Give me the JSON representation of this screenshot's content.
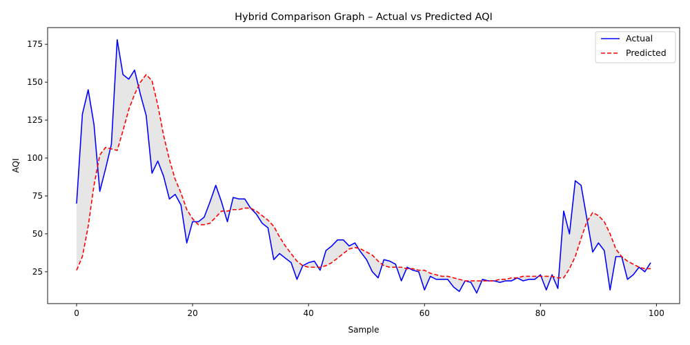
{
  "chart_data": {
    "type": "line",
    "title": "Hybrid Comparison Graph – Actual vs Predicted AQI",
    "xlabel": "Sample",
    "ylabel": "AQI",
    "xlim": [
      -5,
      104
    ],
    "ylim": [
      4,
      186
    ],
    "xticks": [
      0,
      20,
      40,
      60,
      80,
      100
    ],
    "yticks": [
      25,
      50,
      75,
      100,
      125,
      150,
      175
    ],
    "grid": false,
    "legend_position": "top-right",
    "fill_between": {
      "color": "#e6e6e6"
    },
    "series": [
      {
        "name": "Actual",
        "color": "#0000ff",
        "style": "solid",
        "values": [
          70,
          129,
          145,
          122,
          78,
          93,
          109,
          178,
          155,
          152,
          158,
          142,
          128,
          90,
          98,
          88,
          73,
          76,
          69,
          44,
          58,
          58,
          61,
          71,
          82,
          71,
          58,
          74,
          73,
          73,
          67,
          63,
          57,
          54,
          33,
          37,
          34,
          31,
          20,
          29,
          31,
          32,
          26,
          39,
          42,
          46,
          46,
          42,
          44,
          38,
          33,
          25,
          21,
          33,
          32,
          30,
          19,
          28,
          26,
          25,
          13,
          22,
          20,
          20,
          20,
          15,
          12,
          19,
          18,
          11,
          20,
          19,
          19,
          18,
          19,
          19,
          21,
          19,
          20,
          20,
          23,
          13,
          23,
          14,
          65,
          50,
          85,
          82,
          60,
          38,
          44,
          39,
          13,
          35,
          35,
          20,
          23,
          28,
          25,
          31
        ]
      },
      {
        "name": "Predicted",
        "color": "#ff0000",
        "style": "dashed",
        "values": [
          26,
          35,
          55,
          82,
          102,
          107,
          106,
          105,
          118,
          132,
          142,
          150,
          155,
          151,
          135,
          115,
          99,
          86,
          77,
          66,
          60,
          56,
          56,
          57,
          61,
          65,
          65,
          66,
          66,
          67,
          67,
          65,
          62,
          59,
          55,
          48,
          42,
          37,
          32,
          29,
          28,
          28,
          28,
          29,
          31,
          34,
          37,
          40,
          41,
          40,
          38,
          36,
          32,
          29,
          28,
          28,
          28,
          27,
          27,
          26,
          26,
          24,
          23,
          22,
          22,
          21,
          20,
          19,
          19,
          19,
          19,
          19,
          19,
          20,
          20,
          21,
          21,
          22,
          22,
          22,
          22,
          22,
          22,
          21,
          21,
          27,
          35,
          47,
          58,
          64,
          62,
          58,
          50,
          40,
          35,
          32,
          30,
          28,
          27,
          27
        ]
      }
    ]
  }
}
